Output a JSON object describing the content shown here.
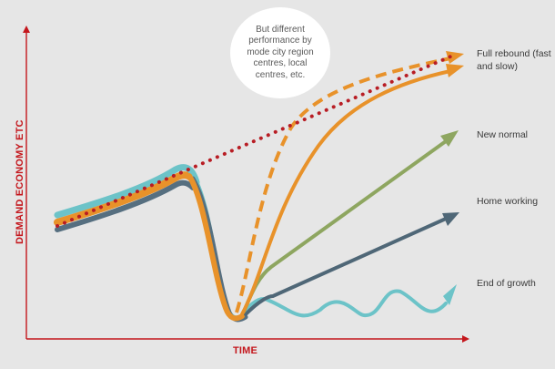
{
  "annotation": {
    "bubble_text": "But different performance by mode city region centres, local centres, etc."
  },
  "axes": {
    "y_label": "DEMAND ECONOMY ETC",
    "x_label": "TIME",
    "color": "#c4161c"
  },
  "scenarios": [
    {
      "label": "Full rebound (fast and slow)",
      "color": "#e8922a",
      "secondary_color": "#b81d24"
    },
    {
      "label": "New normal",
      "color": "#8ea660"
    },
    {
      "label": "Home working",
      "color": "#4f6777"
    },
    {
      "label": "End of growth",
      "color": "#6cc3c8"
    }
  ]
}
